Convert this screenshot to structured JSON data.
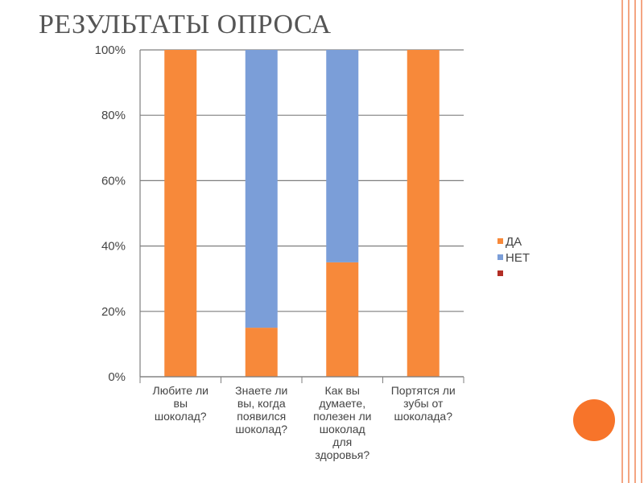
{
  "slide": {
    "title": "РЕЗУЛЬТАТЫ ОПРОСА",
    "accent_color": "#F4A582",
    "circle_color": "#F7742A"
  },
  "chart_data": {
    "type": "bar",
    "stacked": true,
    "ylim": [
      0,
      100
    ],
    "y_unit": "%",
    "yticks": [
      "0%",
      "20%",
      "40%",
      "60%",
      "80%",
      "100%"
    ],
    "grid": true,
    "legend_position": "right",
    "categories": [
      [
        "Любите ли",
        "вы",
        "шоколад?"
      ],
      [
        "Знаете ли",
        "вы, когда",
        "появился",
        "шоколад?"
      ],
      [
        "Как вы",
        "думаете,",
        "полезен ли",
        "шоколад",
        "для",
        "здоровья?"
      ],
      [
        "Портятся ли",
        "зубы от",
        "шоколада?"
      ]
    ],
    "series": [
      {
        "name": "ДА",
        "color": "#F7893A",
        "values": [
          100,
          15,
          35,
          100
        ]
      },
      {
        "name": "НЕТ",
        "color": "#7B9ED8",
        "values": [
          0,
          85,
          65,
          0
        ]
      },
      {
        "name": "",
        "color": "#B22E25",
        "values": [
          0,
          0,
          0,
          0
        ]
      }
    ]
  }
}
